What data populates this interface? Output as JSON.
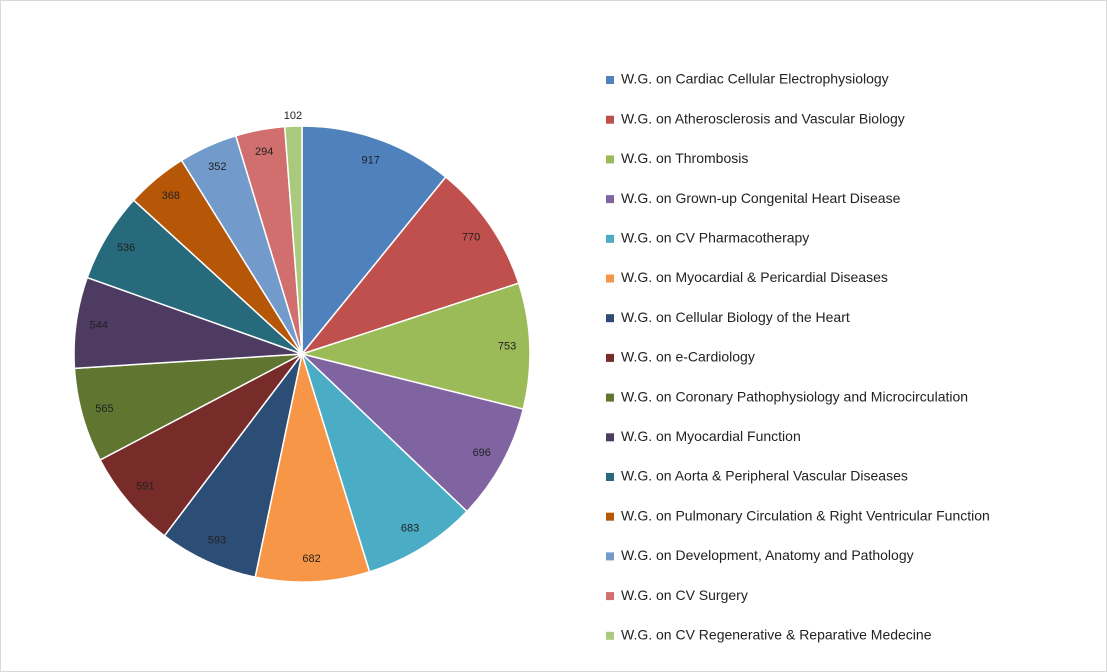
{
  "chart_data": {
    "type": "pie",
    "categories": [
      "W.G. on Cardiac Cellular Electrophysiology",
      "W.G. on Atherosclerosis and Vascular Biology",
      "W.G. on Thrombosis",
      "W.G. on Grown-up Congenital Heart Disease",
      "W.G. on CV Pharmacotherapy",
      "W.G. on Myocardial & Pericardial Diseases",
      "W.G. on Cellular Biology of the Heart",
      "W.G. on e-Cardiology",
      "W.G. on Coronary Pathophysiology and Microcirculation",
      "W.G. on Myocardial Function",
      "W.G. on Aorta & Peripheral Vascular Diseases",
      "W.G. on Pulmonary Circulation & Right Ventricular Function",
      "W.G. on Development, Anatomy and Pathology",
      "W.G. on CV Surgery",
      "W.G. on CV Regenerative & Reparative Medecine"
    ],
    "values": [
      917,
      770,
      753,
      696,
      683,
      682,
      593,
      591,
      565,
      544,
      536,
      368,
      352,
      294,
      102
    ],
    "colors": [
      "#4f81bd",
      "#c0504d",
      "#9bbb59",
      "#8064a2",
      "#4bacc6",
      "#f79646",
      "#2c4d75",
      "#772c2a",
      "#5f7530",
      "#4d3b62",
      "#276a7c",
      "#b65708",
      "#729aca",
      "#d06f6d",
      "#a9c97c"
    ],
    "legend": "right"
  }
}
